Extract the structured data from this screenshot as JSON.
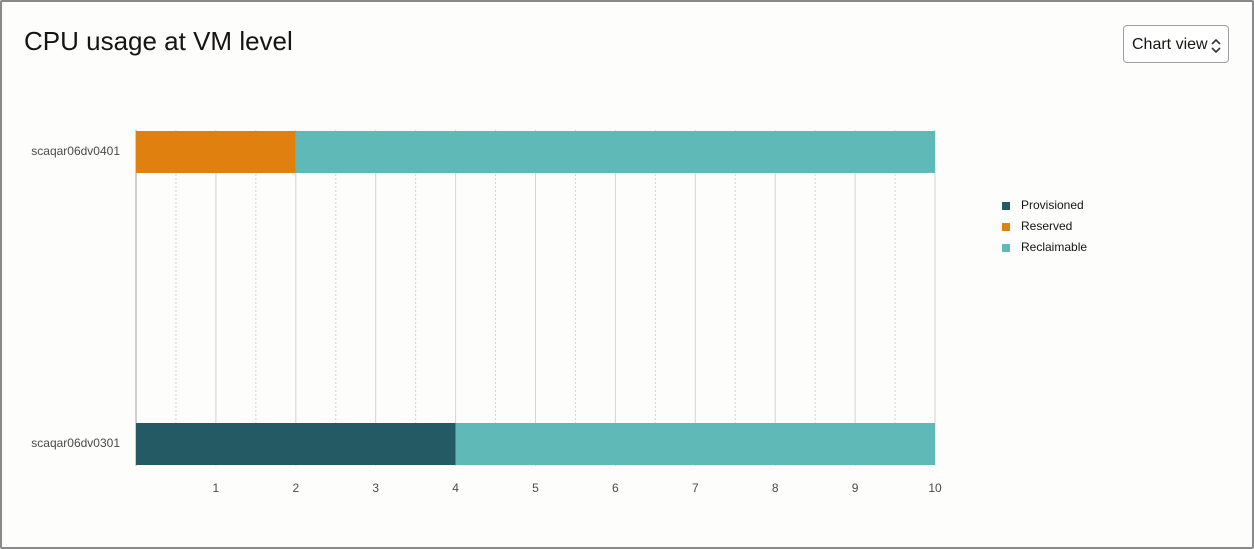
{
  "view_selector": "Chart view",
  "chart_data": {
    "type": "stacked-bar-horizontal",
    "title": "CPU usage at VM level",
    "categories": [
      "scaqar06dv0401",
      "scaqar06dv0301"
    ],
    "series": [
      {
        "name": "Provisioned",
        "color": "#235a63",
        "values": [
          0,
          4
        ]
      },
      {
        "name": "Reserved",
        "color": "#e0800f",
        "values": [
          2,
          0
        ]
      },
      {
        "name": "Reclaimable",
        "color": "#5fb9b6",
        "values": [
          8,
          6
        ]
      }
    ],
    "xlim": [
      0,
      10
    ],
    "xticks": [
      1,
      2,
      3,
      4,
      5,
      6,
      7,
      8,
      9,
      10
    ],
    "minor_xticks": [
      0.5,
      1.5,
      2.5,
      3.5,
      4.5,
      5.5,
      6.5,
      7.5,
      8.5,
      9.5
    ],
    "grid": true,
    "legend": "right"
  }
}
